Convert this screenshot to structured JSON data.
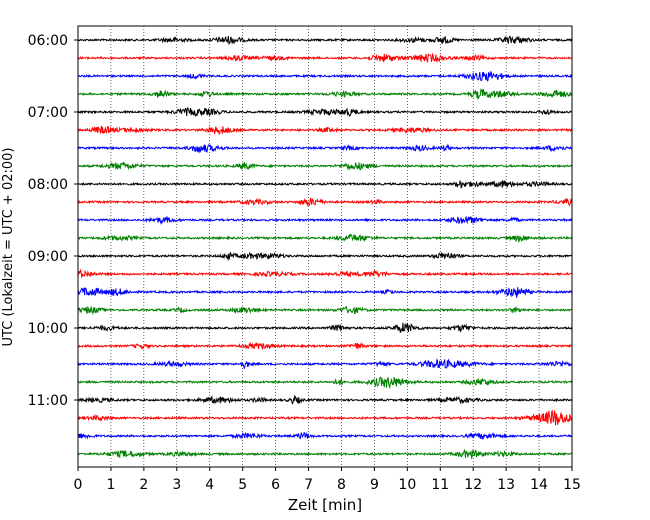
{
  "chart_data": {
    "type": "line",
    "title": "",
    "xlabel": "Zeit  [min]",
    "ylabel": "UTC (Lokalzeit = UTC + 02:00)",
    "xlim": [
      0,
      15
    ],
    "x_ticks": [
      "0",
      "1",
      "2",
      "3",
      "4",
      "5",
      "6",
      "7",
      "8",
      "9",
      "10",
      "11",
      "12",
      "13",
      "14",
      "15"
    ],
    "y_ticks": [
      "06:00",
      "07:00",
      "08:00",
      "09:00",
      "10:00",
      "11:00"
    ],
    "grid": "vertical dotted at each minute",
    "legend": "none",
    "trace_interval_min": 15,
    "trace_count": 24,
    "trace_start_utc": "06:00",
    "trace_end_utc": "11:45",
    "trace_colors_cycle": [
      "#000000",
      "#ff0000",
      "#0000ff",
      "#008000"
    ]
  }
}
